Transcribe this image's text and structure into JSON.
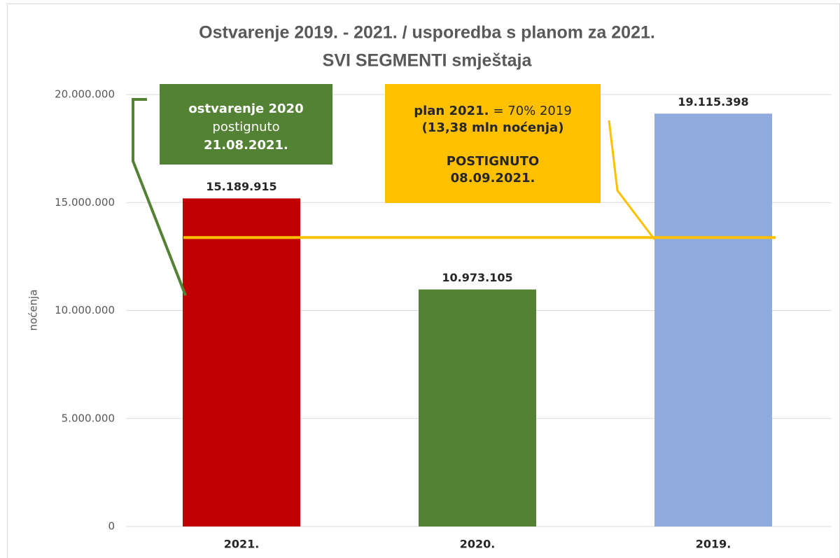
{
  "chart_data": {
    "type": "bar",
    "title": [
      "Ostvarenje 2019. - 2021. / usporedba s planom  za 2021.",
      "SVI SEGMENTI smještaja"
    ],
    "y_label": "noćenja",
    "categories": [
      "2021.",
      "2020.",
      "2019."
    ],
    "values": [
      15189915,
      10973105,
      19115398
    ],
    "value_labels": [
      "15.189.915",
      "10.973.105",
      "19.115.398"
    ],
    "colors": [
      "#c00000",
      "#548235",
      "#8faadc"
    ],
    "ylim": [
      0,
      20000000
    ],
    "yticks": [
      0,
      {
        "value": 5000000,
        "label": "5.000.000"
      },
      {
        "value": 10000000,
        "label": "10.000.000"
      },
      {
        "value": 15000000,
        "label": "15.000.000"
      },
      {
        "value": 20000000,
        "label": "20.000.000"
      }
    ],
    "grid": true,
    "reference_line": {
      "value": 13380000,
      "color": "#ffc000"
    },
    "annotations": [
      {
        "color": "#548235",
        "text_color": "#ffffff",
        "lines": [
          [
            {
              "text": "ostvarenje 2020",
              "bold": true
            }
          ],
          [
            {
              "text": "postignuto",
              "bold": false
            }
          ],
          [
            {
              "text": "21.08.2021.",
              "bold": true
            }
          ]
        ]
      },
      {
        "color": "#ffc000",
        "text_color": "#262626",
        "lines": [
          [
            {
              "text": "plan 2021.",
              "bold": true
            },
            {
              "text": "= 70% 2019",
              "bold": false
            }
          ],
          [
            {
              "text": "(13,38 mln noćenja)",
              "bold": true
            }
          ],
          [],
          [
            {
              "text": "POSTIGNUTO",
              "bold": true
            }
          ],
          [
            {
              "text": "08.09.2021.",
              "bold": true
            }
          ]
        ]
      }
    ]
  }
}
